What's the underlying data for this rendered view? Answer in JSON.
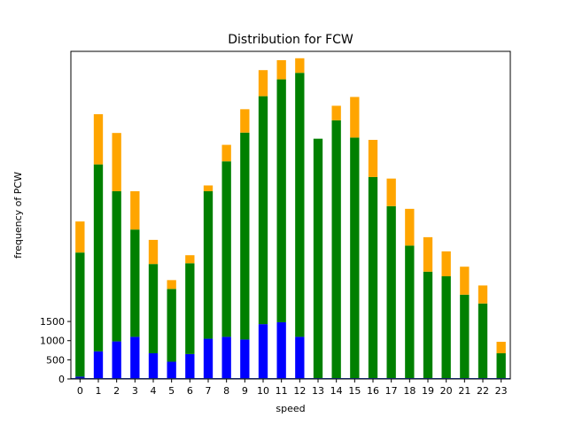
{
  "chart_data": {
    "type": "bar",
    "stacked": true,
    "title": "Distribution for FCW",
    "xlabel": "speed",
    "ylabel": "frequency of PCW",
    "categories": [
      "0",
      "1",
      "2",
      "3",
      "4",
      "5",
      "6",
      "7",
      "8",
      "9",
      "10",
      "11",
      "12",
      "13",
      "14",
      "15",
      "16",
      "17",
      "18",
      "19",
      "20",
      "21",
      "22",
      "23"
    ],
    "yticks": [
      0,
      500,
      1000,
      1500
    ],
    "ylim": [
      0,
      8550
    ],
    "grid": false,
    "legend": "none",
    "series": [
      {
        "color": "#0000ff",
        "values": [
          60,
          720,
          980,
          1100,
          670,
          450,
          650,
          1050,
          1100,
          1030,
          1430,
          1480,
          1100,
          0,
          0,
          0,
          0,
          0,
          0,
          0,
          0,
          0,
          0,
          0
        ]
      },
      {
        "color": "#008000",
        "values": [
          3240,
          4880,
          3920,
          2800,
          2330,
          1900,
          2370,
          3850,
          4580,
          5400,
          5950,
          6340,
          6890,
          6270,
          6750,
          6300,
          5270,
          4510,
          3480,
          2800,
          2680,
          2200,
          1970,
          670
        ]
      },
      {
        "color": "#ffa500",
        "values": [
          810,
          1310,
          1520,
          1000,
          630,
          230,
          210,
          150,
          430,
          610,
          680,
          500,
          380,
          0,
          380,
          1060,
          970,
          720,
          960,
          900,
          650,
          730,
          470,
          300
        ]
      }
    ],
    "bottom_marker": {
      "color": "#222222",
      "values": [
        30
      ]
    }
  }
}
